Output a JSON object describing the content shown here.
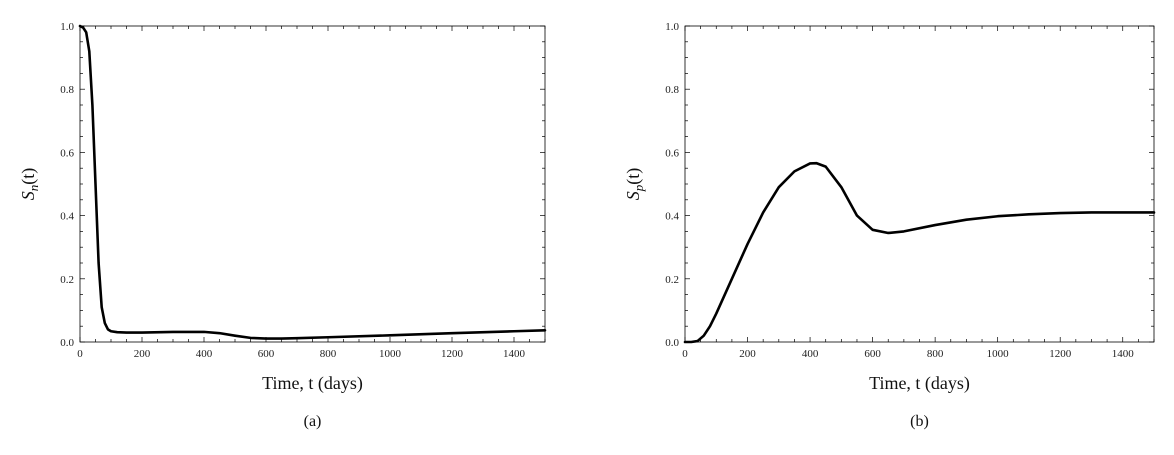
{
  "chart_data": [
    {
      "type": "line",
      "panel_label": "(a)",
      "xlabel": "Time, t (days)",
      "ylabel_main": "S",
      "ylabel_sub": "n",
      "ylabel_suffix": "(t)",
      "xlim": [
        0,
        1500
      ],
      "ylim": [
        0,
        1
      ],
      "xticks": [
        "0",
        "200",
        "400",
        "600",
        "800",
        "1000",
        "1200",
        "1400"
      ],
      "yticks": [
        "0.0",
        "0.2",
        "0.4",
        "0.6",
        "0.8",
        "1.0"
      ],
      "grid": false,
      "series": [
        {
          "color": "#000000",
          "x": [
            0,
            10,
            20,
            30,
            40,
            50,
            60,
            70,
            80,
            90,
            100,
            120,
            150,
            200,
            300,
            400,
            450,
            500,
            550,
            600,
            650,
            700,
            800,
            1000,
            1200,
            1400,
            1500
          ],
          "y": [
            1.0,
            0.995,
            0.98,
            0.92,
            0.75,
            0.5,
            0.25,
            0.11,
            0.06,
            0.04,
            0.034,
            0.031,
            0.03,
            0.03,
            0.032,
            0.032,
            0.028,
            0.02,
            0.013,
            0.011,
            0.011,
            0.012,
            0.015,
            0.021,
            0.028,
            0.034,
            0.037
          ]
        }
      ]
    },
    {
      "type": "line",
      "panel_label": "(b)",
      "xlabel": "Time, t (days)",
      "ylabel_main": "S",
      "ylabel_sub": "p",
      "ylabel_suffix": "(t)",
      "xlim": [
        0,
        1500
      ],
      "ylim": [
        0,
        1
      ],
      "xticks": [
        "0",
        "200",
        "400",
        "600",
        "800",
        "1000",
        "1200",
        "1400"
      ],
      "yticks": [
        "0.0",
        "0.2",
        "0.4",
        "0.6",
        "0.8",
        "1.0"
      ],
      "grid": false,
      "series": [
        {
          "color": "#000000",
          "x": [
            0,
            20,
            40,
            60,
            80,
            100,
            150,
            200,
            250,
            300,
            350,
            400,
            420,
            450,
            500,
            550,
            600,
            650,
            700,
            800,
            900,
            1000,
            1100,
            1200,
            1300,
            1400,
            1500
          ],
          "y": [
            0.0,
            0.0,
            0.003,
            0.02,
            0.05,
            0.09,
            0.2,
            0.31,
            0.41,
            0.49,
            0.54,
            0.565,
            0.566,
            0.555,
            0.49,
            0.4,
            0.355,
            0.345,
            0.35,
            0.37,
            0.387,
            0.398,
            0.404,
            0.408,
            0.41,
            0.41,
            0.41
          ]
        }
      ]
    }
  ]
}
